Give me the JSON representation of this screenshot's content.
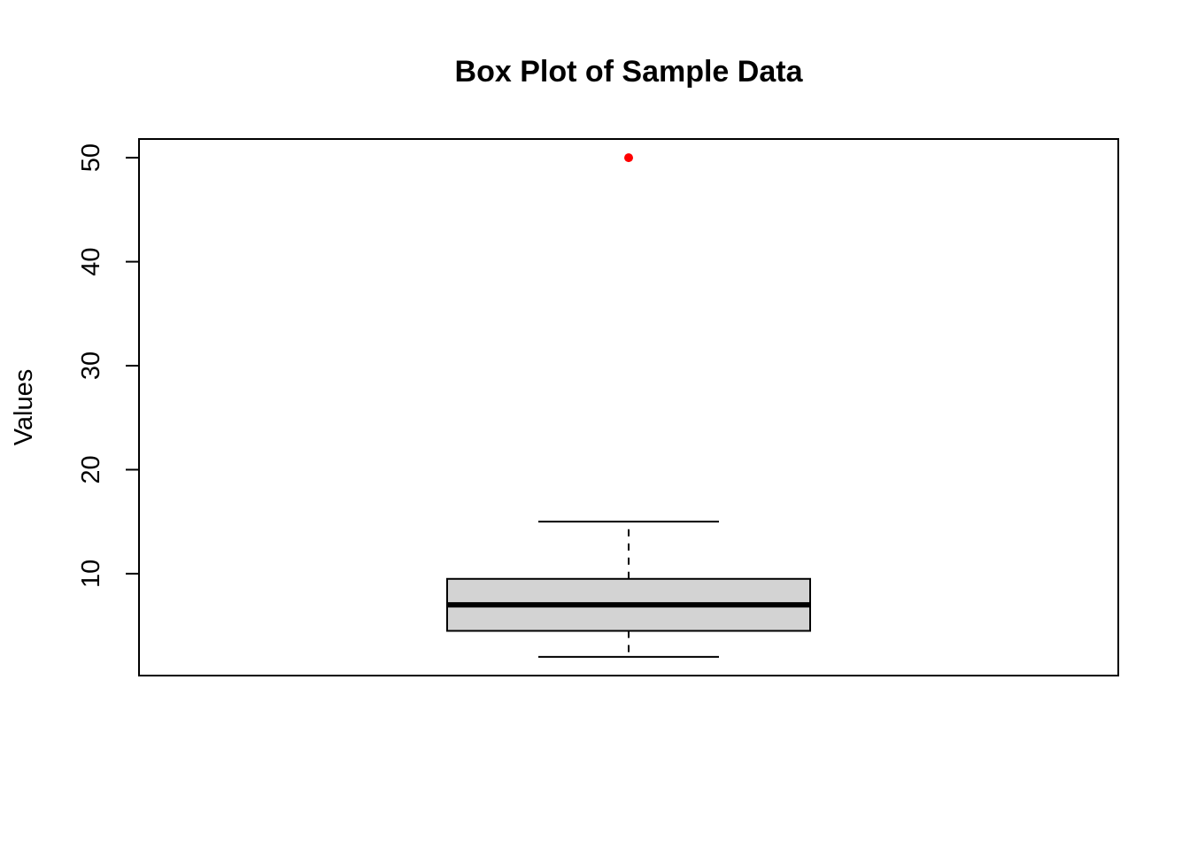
{
  "chart_data": {
    "type": "boxplot",
    "title": "Box Plot of Sample Data",
    "xlabel": "",
    "ylabel": "Values",
    "ylim": [
      0.2,
      51.8
    ],
    "yticks": [
      10,
      20,
      30,
      40,
      50
    ],
    "grid": false,
    "legend": "none",
    "box": {
      "min": 2,
      "q1": 4.5,
      "median": 7,
      "q3": 9.5,
      "max": 15
    },
    "outliers": [
      50
    ],
    "colors": {
      "box_fill": "#d3d3d3",
      "outlier": "#ff0000",
      "line": "#000000"
    }
  }
}
